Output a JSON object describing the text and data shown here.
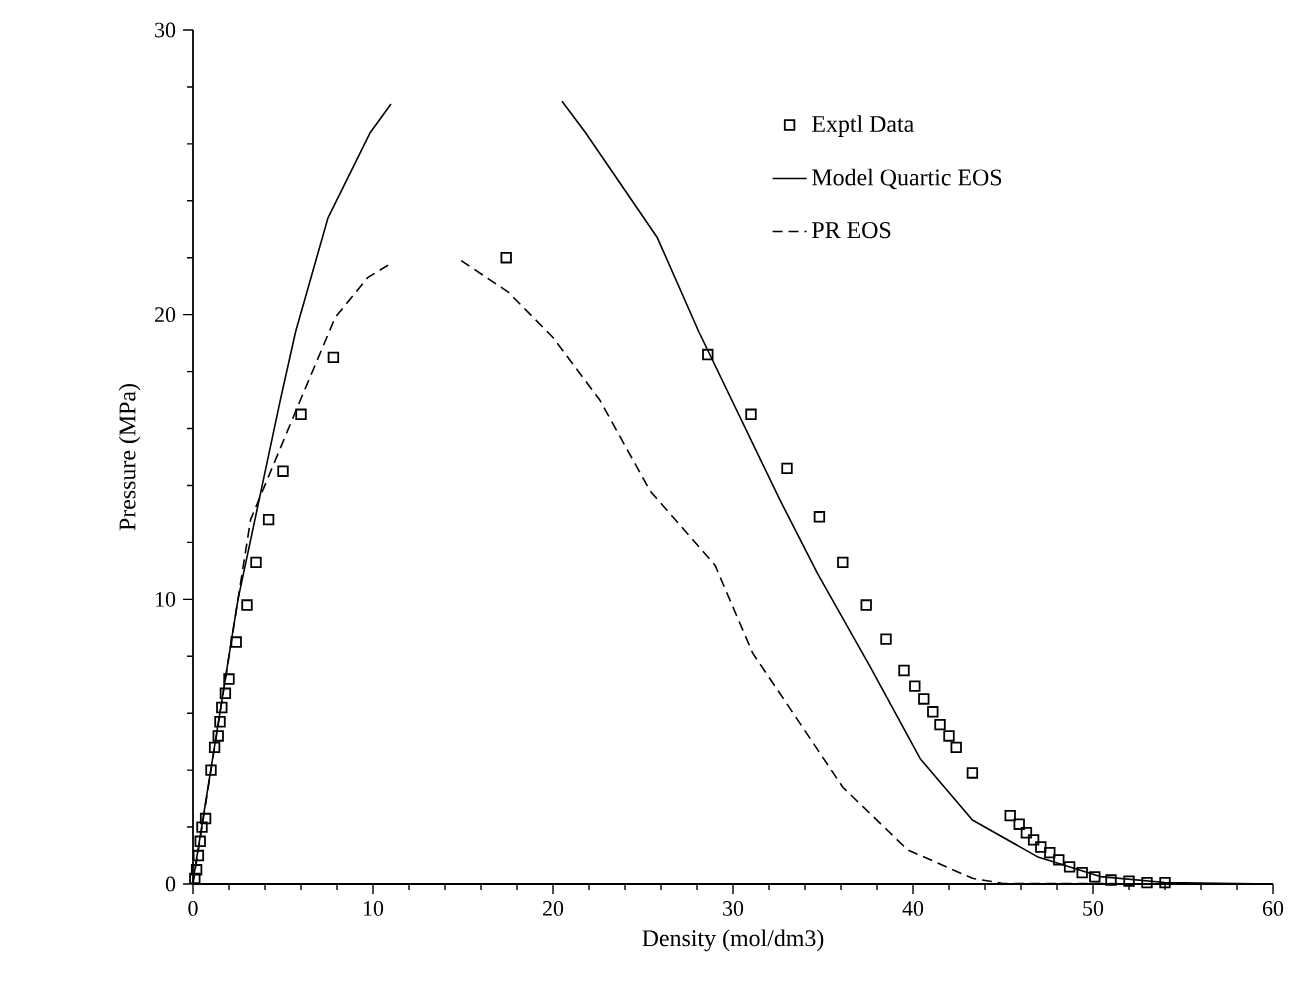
{
  "chart_data": {
    "type": "scatter",
    "xlabel": "Density (mol/dm3)",
    "ylabel": "Pressure (MPa)",
    "xlim": [
      0,
      60
    ],
    "xticks": [
      0,
      10,
      20,
      30,
      40,
      50,
      60
    ],
    "ylim": [
      0,
      30
    ],
    "yticks": [
      0,
      10,
      20,
      30
    ],
    "grid": false,
    "legend": "top right",
    "series": [
      {
        "name": "Exptl Data",
        "marker": "square",
        "color": "#000000",
        "x": [
          0.1,
          0.2,
          0.3,
          0.4,
          0.5,
          0.7,
          1.0,
          1.2,
          1.4,
          1.5,
          1.6,
          1.8,
          2.0,
          2.4,
          3.0,
          3.5,
          4.2,
          5.0,
          6.0,
          7.8,
          17.4,
          28.6,
          31.0,
          33.0,
          34.8,
          36.1,
          37.4,
          38.5,
          39.5,
          40.1,
          40.6,
          41.1,
          41.5,
          42.0,
          42.4,
          43.3,
          45.4,
          45.9,
          46.3,
          46.7,
          47.1,
          47.6,
          48.1,
          48.7,
          49.4,
          50.1,
          51.0,
          52.0,
          53.0,
          54.0
        ],
        "values": [
          0.2,
          0.5,
          1.0,
          1.5,
          2.0,
          2.3,
          4.0,
          4.8,
          5.2,
          5.7,
          6.2,
          6.7,
          7.2,
          8.5,
          9.8,
          11.3,
          12.8,
          14.5,
          16.5,
          18.5,
          22.0,
          18.6,
          16.5,
          14.6,
          12.9,
          11.3,
          9.8,
          8.6,
          7.5,
          6.95,
          6.5,
          6.05,
          5.6,
          5.2,
          4.8,
          3.9,
          2.4,
          2.1,
          1.8,
          1.55,
          1.3,
          1.1,
          0.85,
          0.6,
          0.4,
          0.25,
          0.14,
          0.1,
          0.05,
          0.05
        ]
      },
      {
        "name": "Model Quartic EOS",
        "type": "line",
        "line_style": "solid",
        "color": "#000000",
        "x": [
          0,
          2.5,
          4.85,
          5.7,
          7.5,
          9.85,
          11.0,
          15.0,
          20.5,
          21.8,
          25.8,
          28.1,
          32.6,
          34.7,
          37.6,
          40.4,
          43.3,
          46.9,
          50.4,
          54.0,
          60.0
        ],
        "values": [
          0.1,
          10.0,
          17.0,
          19.4,
          23.4,
          26.4,
          27.4,
          null,
          27.5,
          26.4,
          22.7,
          19.4,
          13.5,
          10.9,
          7.65,
          4.4,
          2.25,
          0.96,
          0.26,
          0.05,
          0
        ]
      },
      {
        "name": "PR EOS",
        "type": "line",
        "line_style": "dashed",
        "color": "#000000",
        "x": [
          0,
          3.2,
          5.7,
          7.9,
          9.7,
          11.0,
          13.0,
          14.9,
          17.5,
          20.0,
          22.6,
          25.4,
          29.0,
          31.1,
          32.6,
          36.1,
          39.7,
          43.3,
          45.0,
          60.0
        ],
        "values": [
          0,
          12.8,
          16.6,
          19.9,
          21.3,
          21.8,
          null,
          21.9,
          20.8,
          19.2,
          17.0,
          13.8,
          11.2,
          8.1,
          6.7,
          3.4,
          1.2,
          0.2,
          0.02,
          0
        ]
      }
    ]
  }
}
